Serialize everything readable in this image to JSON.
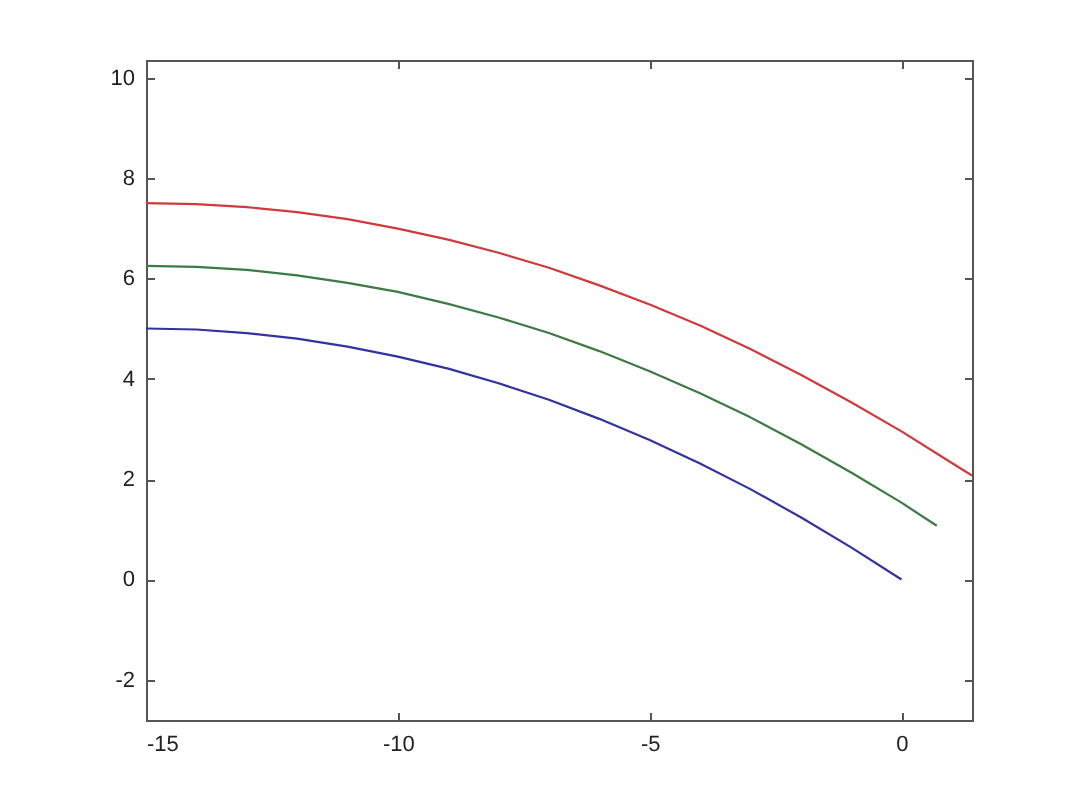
{
  "chart_data": {
    "type": "line",
    "xlim": [
      -15,
      1.4
    ],
    "ylim": [
      -2.8,
      10.35
    ],
    "xticks": [
      -15,
      -10,
      -5,
      0
    ],
    "yticks": [
      -2,
      0,
      2,
      4,
      6,
      8,
      10
    ],
    "line_style": "solid",
    "series": [
      {
        "color": "#d03a3a",
        "x": [
          -15,
          -14,
          -13,
          -12,
          -11,
          -10,
          -9,
          -8,
          -7,
          -6,
          -5,
          -4,
          -3,
          -2,
          -1,
          0,
          1,
          1.4
        ],
        "values": [
          7.5,
          7.48,
          7.42,
          7.32,
          7.18,
          6.99,
          6.77,
          6.51,
          6.21,
          5.86,
          5.48,
          5.06,
          4.59,
          4.08,
          3.53,
          2.95,
          2.32,
          2.07
        ]
      },
      {
        "color": "#3c7a46",
        "x": [
          -15,
          -14,
          -13,
          -12,
          -11,
          -10,
          -9,
          -8,
          -7,
          -6,
          -5,
          -4,
          -3,
          -2,
          -1,
          0,
          0.7
        ],
        "values": [
          6.25,
          6.23,
          6.17,
          6.06,
          5.91,
          5.73,
          5.49,
          5.22,
          4.91,
          4.55,
          4.15,
          3.71,
          3.23,
          2.7,
          2.13,
          1.53,
          1.07
        ]
      },
      {
        "color": "#3232a0",
        "x": [
          -15,
          -14,
          -13,
          -12,
          -11,
          -10,
          -9,
          -8,
          -7,
          -6,
          -5,
          -4,
          -3,
          -2,
          -1,
          0
        ],
        "values": [
          5.0,
          4.98,
          4.91,
          4.8,
          4.64,
          4.44,
          4.2,
          3.91,
          3.58,
          3.2,
          2.78,
          2.31,
          1.8,
          1.24,
          0.64,
          0
        ]
      }
    ]
  }
}
